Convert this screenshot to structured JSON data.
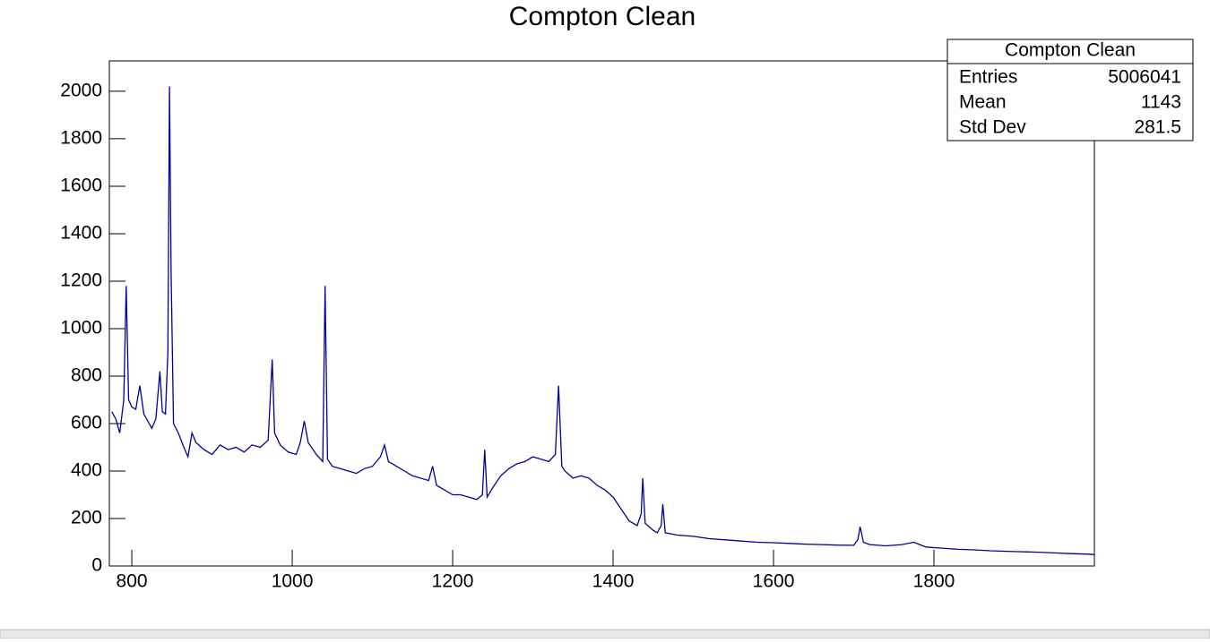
{
  "chart_data": {
    "type": "line",
    "title": "Compton Clean",
    "x": [
      775,
      780,
      785,
      790,
      793,
      796,
      800,
      805,
      810,
      815,
      820,
      825,
      830,
      835,
      838,
      842,
      845,
      847,
      849,
      852,
      858,
      865,
      870,
      875,
      880,
      890,
      900,
      910,
      920,
      930,
      940,
      950,
      960,
      970,
      975,
      978,
      985,
      995,
      1005,
      1010,
      1015,
      1020,
      1030,
      1038,
      1041,
      1044,
      1050,
      1060,
      1070,
      1080,
      1090,
      1100,
      1110,
      1115,
      1120,
      1130,
      1140,
      1150,
      1160,
      1170,
      1175,
      1180,
      1190,
      1200,
      1210,
      1220,
      1230,
      1237,
      1240,
      1243,
      1250,
      1260,
      1270,
      1280,
      1290,
      1300,
      1310,
      1320,
      1328,
      1332,
      1336,
      1340,
      1350,
      1360,
      1370,
      1380,
      1390,
      1400,
      1410,
      1420,
      1430,
      1435,
      1437,
      1440,
      1450,
      1455,
      1460,
      1462,
      1465,
      1480,
      1500,
      1520,
      1540,
      1560,
      1580,
      1600,
      1620,
      1640,
      1660,
      1680,
      1700,
      1705,
      1708,
      1712,
      1720,
      1740,
      1760,
      1775,
      1790,
      1810,
      1830,
      1850,
      1870,
      1890,
      1910,
      1930,
      1950,
      1970,
      1990,
      2000
    ],
    "values": [
      650,
      620,
      560,
      700,
      1180,
      700,
      670,
      660,
      760,
      640,
      610,
      580,
      620,
      820,
      650,
      640,
      900,
      2020,
      1240,
      600,
      560,
      500,
      460,
      560,
      520,
      490,
      470,
      510,
      490,
      500,
      480,
      510,
      500,
      530,
      870,
      560,
      510,
      480,
      470,
      520,
      610,
      520,
      470,
      440,
      1180,
      450,
      420,
      410,
      400,
      390,
      410,
      420,
      460,
      510,
      440,
      420,
      400,
      380,
      370,
      360,
      420,
      340,
      320,
      300,
      300,
      290,
      280,
      300,
      490,
      290,
      330,
      380,
      410,
      430,
      440,
      460,
      450,
      440,
      470,
      760,
      420,
      400,
      370,
      380,
      370,
      340,
      320,
      290,
      240,
      190,
      170,
      220,
      370,
      180,
      150,
      140,
      170,
      260,
      140,
      130,
      125,
      115,
      110,
      105,
      100,
      98,
      95,
      92,
      90,
      88,
      87,
      110,
      165,
      100,
      90,
      85,
      90,
      100,
      80,
      75,
      70,
      68,
      64,
      62,
      60,
      58,
      55,
      52,
      50,
      48
    ],
    "color": "#000099",
    "xlim": [
      772,
      2000
    ],
    "ylim": [
      0,
      2128
    ],
    "xticks": [
      800,
      1000,
      1200,
      1400,
      1600,
      1800
    ],
    "yticks": [
      0,
      200,
      400,
      600,
      800,
      1000,
      1200,
      1400,
      1600,
      1800,
      2000
    ],
    "grid": false,
    "stats": {
      "title": "Compton Clean",
      "rows": [
        [
          "Entries",
          5006041
        ],
        [
          "Mean",
          1143
        ],
        [
          "Std Dev",
          281.5
        ]
      ]
    }
  }
}
